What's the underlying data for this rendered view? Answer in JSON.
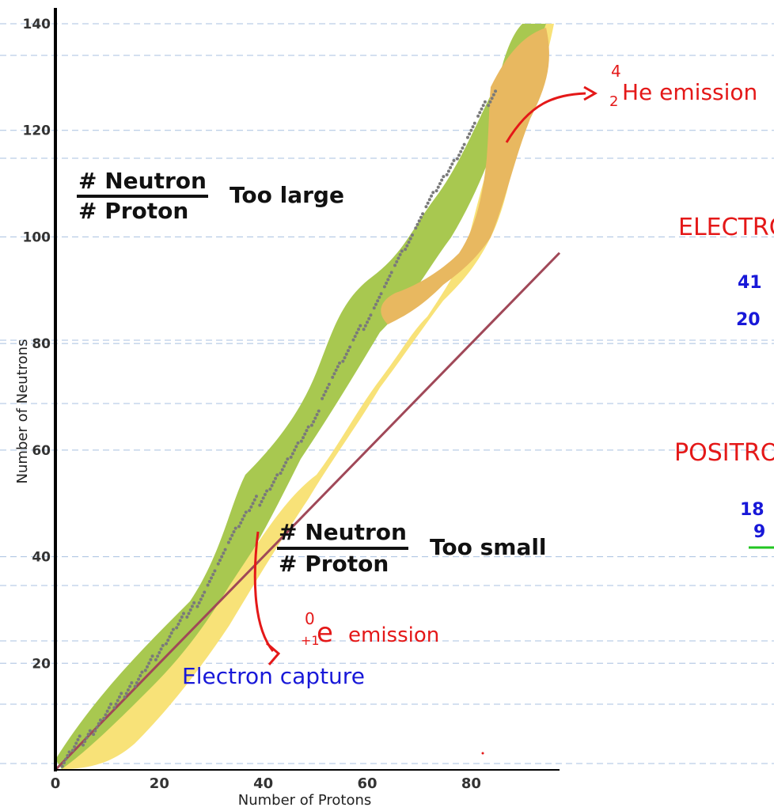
{
  "chart_data": {
    "type": "scatter",
    "title": "",
    "xlabel": "Number of Protons",
    "ylabel": "Number of Neutrons",
    "xlim": [
      0,
      97
    ],
    "ylim": [
      0,
      140
    ],
    "x_ticks": [
      0,
      20,
      40,
      60,
      80
    ],
    "y_ticks": [
      20,
      40,
      60,
      80,
      100,
      120,
      140
    ],
    "grid": "horizontal dashed lines",
    "series": [
      {
        "name": "",
        "marker": "dot",
        "values": [
          [
            2,
            2
          ],
          [
            4,
            5
          ],
          [
            6,
            6
          ],
          [
            8,
            8
          ],
          [
            10,
            11
          ],
          [
            12,
            13
          ],
          [
            14,
            15
          ],
          [
            16,
            17
          ],
          [
            18,
            20
          ],
          [
            20,
            22
          ],
          [
            22,
            25
          ],
          [
            24,
            28
          ],
          [
            26,
            30
          ],
          [
            28,
            32
          ],
          [
            30,
            36
          ],
          [
            32,
            40
          ],
          [
            34,
            44
          ],
          [
            36,
            47
          ],
          [
            38,
            50
          ],
          [
            40,
            51
          ],
          [
            42,
            54
          ],
          [
            44,
            57
          ],
          [
            46,
            60
          ],
          [
            48,
            63
          ],
          [
            50,
            66
          ],
          [
            52,
            71
          ],
          [
            54,
            75
          ],
          [
            56,
            78
          ],
          [
            58,
            82
          ],
          [
            60,
            84
          ],
          [
            62,
            88
          ],
          [
            64,
            92
          ],
          [
            66,
            96
          ],
          [
            68,
            99
          ],
          [
            70,
            103
          ],
          [
            72,
            107
          ],
          [
            74,
            110
          ],
          [
            76,
            113
          ],
          [
            78,
            116
          ],
          [
            80,
            120
          ],
          [
            82,
            124
          ],
          [
            84,
            126
          ]
        ]
      },
      {
        "name": "",
        "type": "line",
        "color": "#a04858",
        "values": [
          [
            0,
            0
          ],
          [
            97,
            97
          ]
        ]
      }
    ],
    "regions": [
      {
        "color": "#a8c850"
      },
      {
        "color": "#f8e278"
      },
      {
        "color": "#e8b860"
      }
    ]
  },
  "labels": {
    "x_tick": [
      "0",
      "20",
      "40",
      "60",
      "80"
    ],
    "y_tick": [
      "20",
      "40",
      "60",
      "80",
      "100",
      "120",
      "140"
    ],
    "xlabel": "Number of Protons",
    "ylabel": "Number of Neutrons"
  },
  "annotations": {
    "top_fraction": {
      "num": "# Neutron",
      "den": "# Proton",
      "side": "Too large"
    },
    "bottom_fraction": {
      "num": "# Neutron",
      "den": "# Proton",
      "side": "Too small"
    },
    "he_emission": {
      "mass": "4",
      "atomic": "2",
      "text": "He emission"
    },
    "beta_plus": {
      "mass": "0",
      "charge": "+1",
      "symbol": "e",
      "text": "emission"
    },
    "electron_capture": "Electron capture",
    "electron_heading": "ELECTRO",
    "positron_heading": "POSITRON",
    "n41": "41",
    "n20": "20",
    "n18": "18",
    "n9": "9"
  },
  "colors": {
    "handwriting_red": "#e41818",
    "handwriting_blue": "#1818d8",
    "handwriting_green": "#22c622",
    "grid": "#a8c0e0",
    "axis": "#000000"
  }
}
